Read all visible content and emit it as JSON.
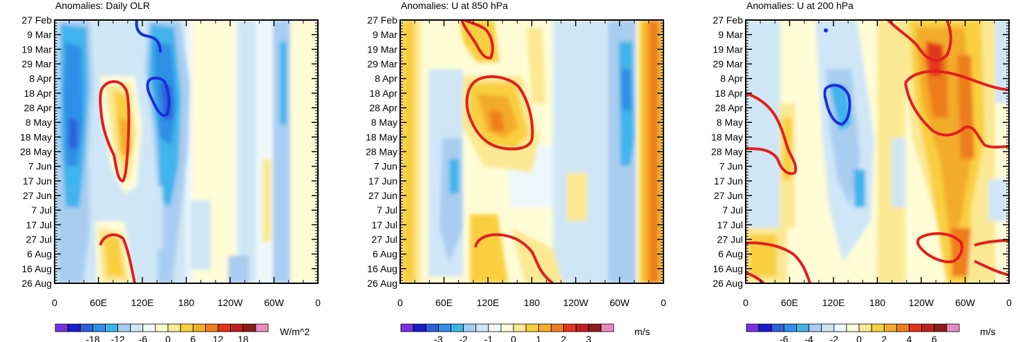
{
  "figure": {
    "date_labels": [
      "27 Feb",
      "9 Mar",
      "19 Mar",
      "29 Mar",
      "8 Apr",
      "18 Apr",
      "28 Apr",
      "8 May",
      "18 May",
      "28 May",
      "7 Jun",
      "17 Jun",
      "27 Jun",
      "7 Jul",
      "17 Jul",
      "27 Jul",
      "6 Aug",
      "16 Aug",
      "26 Aug"
    ],
    "lon_labels": [
      "0",
      "60E",
      "120E",
      "180",
      "120W",
      "60W",
      "0"
    ]
  },
  "chart_data": [
    {
      "type": "heatmap",
      "title": "Anomalies: Daily OLR",
      "x_axis": "longitude",
      "y_axis": "time",
      "xlim": [
        0,
        360
      ],
      "colorbar": {
        "units": "W/m^2",
        "labels": [
          "-18",
          "-12",
          "-6",
          "0",
          "6",
          "12",
          "18"
        ],
        "colors": [
          "#7b2fe0",
          "#1a1acd",
          "#2f5fd6",
          "#2f8fe6",
          "#3fb4ec",
          "#a9cdf0",
          "#cfe6f6",
          "#eef8fb",
          "#fffcd6",
          "#fbe892",
          "#f9cf3f",
          "#f3ab2a",
          "#ee7d1c",
          "#e2341e",
          "#bf1f1f",
          "#8f1a1a",
          "#e98ac1"
        ]
      },
      "features": [
        {
          "name": "negative-band-20E",
          "lon_range": [
            0,
            55
          ],
          "sign": "negative"
        },
        {
          "name": "negative-band-150E",
          "lon_range": [
            130,
            190
          ],
          "sign": "negative"
        },
        {
          "name": "positive-band-85E",
          "lon_range": [
            60,
            110
          ],
          "sign": "positive"
        }
      ],
      "contours": [
        {
          "color": "#e21e1e",
          "sign": "positive",
          "lon_center": 85
        },
        {
          "color": "#e21e1e",
          "sign": "positive",
          "lon_center": 80
        },
        {
          "color": "#1a2fd8",
          "sign": "negative",
          "lon_center": 145
        },
        {
          "color": "#1a2fd8",
          "sign": "negative",
          "lon_center": 140
        }
      ]
    },
    {
      "type": "heatmap",
      "title": "Anomalies: U at 850 hPa",
      "x_axis": "longitude",
      "y_axis": "time",
      "xlim": [
        0,
        360
      ],
      "colorbar": {
        "units": "m/s",
        "labels": [
          "-3",
          "-2",
          "-1",
          "0",
          "1",
          "2",
          "3"
        ],
        "colors": [
          "#7b2fe0",
          "#1a1acd",
          "#2f5fd6",
          "#2f8fe6",
          "#3fb4ec",
          "#a9cdf0",
          "#cfe6f6",
          "#eef8fb",
          "#fffcd6",
          "#fbe892",
          "#f9cf3f",
          "#f3ab2a",
          "#ee7d1c",
          "#e2341e",
          "#bf1f1f",
          "#8f1a1a",
          "#e98ac1"
        ]
      },
      "features": [
        {
          "name": "positive-band-340E",
          "lon_range": [
            330,
            360
          ],
          "sign": "positive"
        },
        {
          "name": "negative-band-300E",
          "lon_range": [
            290,
            310
          ],
          "sign": "negative"
        }
      ],
      "contours": [
        {
          "color": "#e21e1e",
          "sign": "positive",
          "lon_center": 130
        },
        {
          "color": "#e21e1e",
          "sign": "positive",
          "lon_center": 110
        },
        {
          "color": "#e21e1e",
          "sign": "positive",
          "lon_center": 150
        }
      ]
    },
    {
      "type": "heatmap",
      "title": "Anomalies: U at 200 hPa",
      "x_axis": "longitude",
      "y_axis": "time",
      "xlim": [
        0,
        360
      ],
      "colorbar": {
        "units": "m/s",
        "labels": [
          "-6",
          "-4",
          "-2",
          "0",
          "2",
          "4",
          "6"
        ],
        "colors": [
          "#7b2fe0",
          "#1a1acd",
          "#2f5fd6",
          "#2f8fe6",
          "#3fb4ec",
          "#a9cdf0",
          "#cfe6f6",
          "#eef8fb",
          "#fffcd6",
          "#fbe892",
          "#f9cf3f",
          "#f3ab2a",
          "#ee7d1c",
          "#e2341e",
          "#bf1f1f",
          "#8f1a1a",
          "#e98ac1"
        ]
      },
      "features": [
        {
          "name": "positive-band-250E",
          "lon_range": [
            230,
            310
          ],
          "sign": "positive"
        },
        {
          "name": "negative-band-110E",
          "lon_range": [
            95,
            150
          ],
          "sign": "negative"
        }
      ],
      "contours": [
        {
          "color": "#e21e1e",
          "sign": "positive",
          "lon_center": 260
        },
        {
          "color": "#e21e1e",
          "sign": "positive",
          "lon_center": 40
        },
        {
          "color": "#e21e1e",
          "sign": "positive",
          "lon_center": 330
        },
        {
          "color": "#1a2fd8",
          "sign": "negative",
          "lon_center": 120
        }
      ]
    }
  ]
}
